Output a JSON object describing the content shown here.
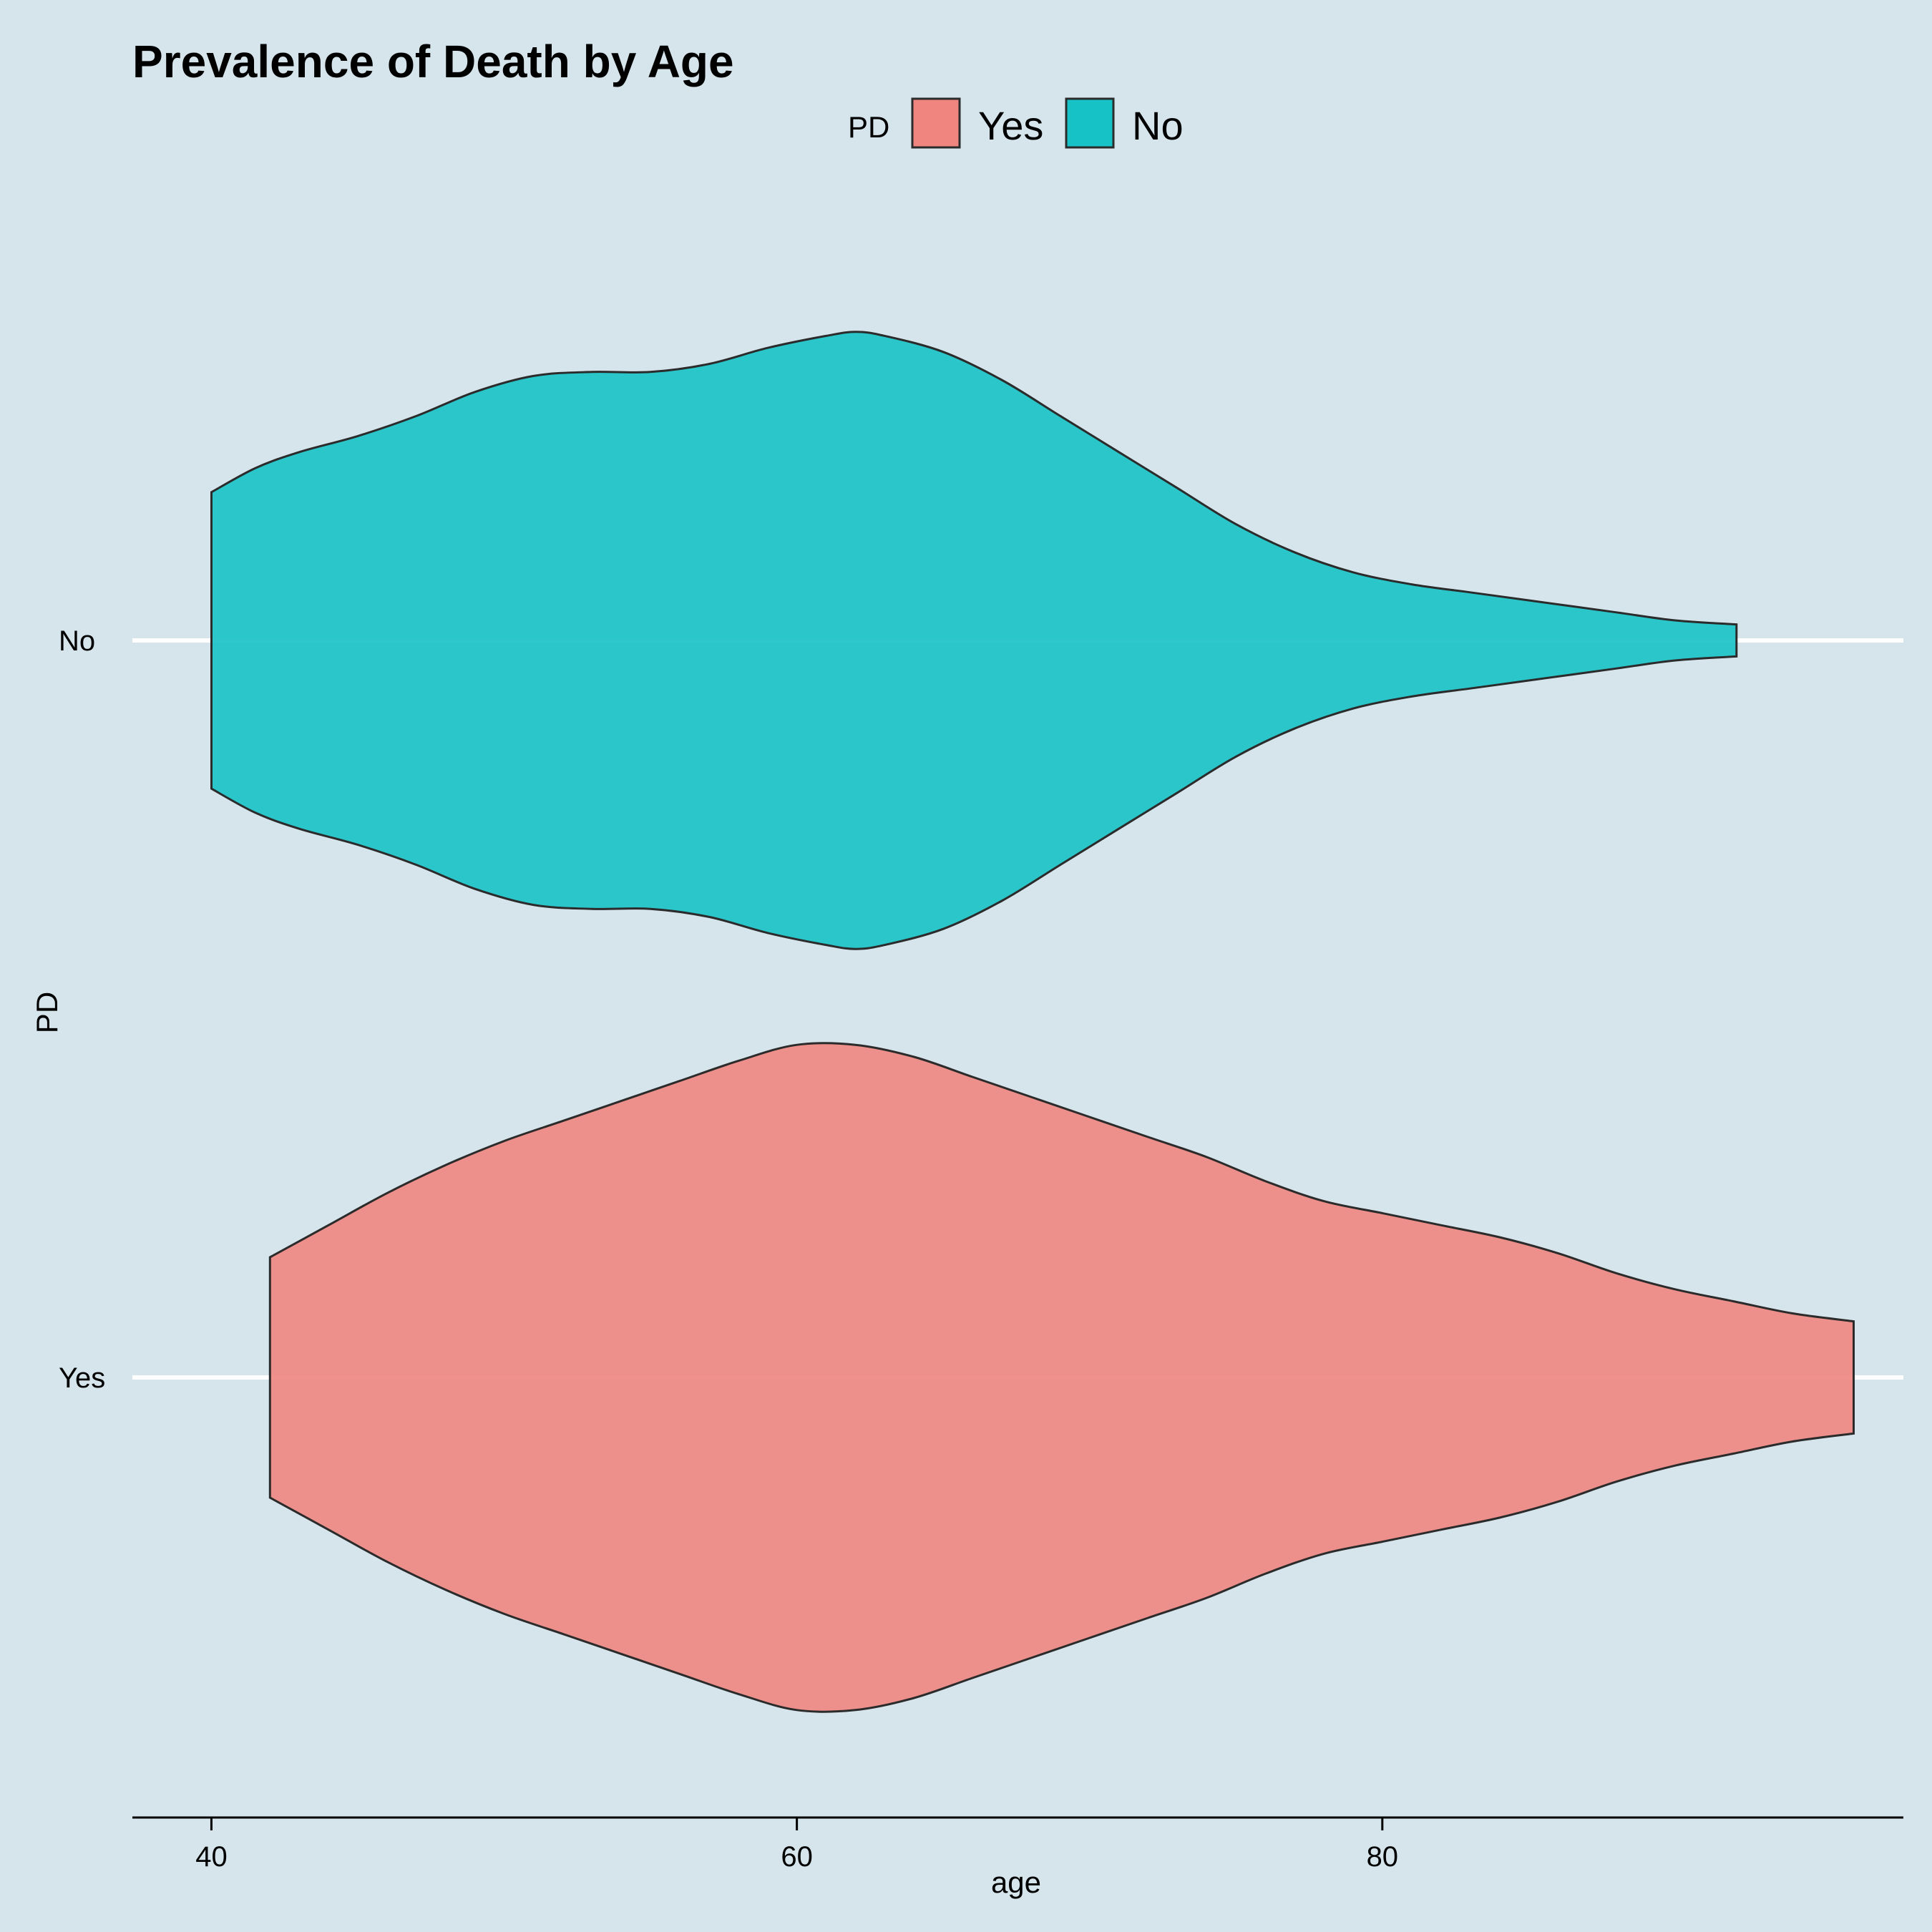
{
  "chart_data": {
    "type": "violin",
    "orientation": "horizontal",
    "title": "Prevalence of Death by Age",
    "xlabel": "age",
    "ylabel": "PD",
    "xlim": [
      37.3,
      97.8
    ],
    "x_ticks": [
      40,
      60,
      80
    ],
    "categories": [
      "Yes",
      "No"
    ],
    "legend": {
      "title": "PD",
      "position": "top",
      "entries": [
        {
          "label": "Yes",
          "color": "#f08580"
        },
        {
          "label": "No",
          "color": "#17c2c7"
        }
      ]
    },
    "grid": {
      "major_y": true,
      "major_x": false
    },
    "series": [
      {
        "name": "No",
        "category": "No",
        "color": "#17c2c7",
        "age_range": [
          40,
          92.1
        ],
        "density_profile": [
          [
            40.0,
            0.37
          ],
          [
            41.5,
            0.43
          ],
          [
            43.0,
            0.47
          ],
          [
            45.0,
            0.51
          ],
          [
            47.0,
            0.56
          ],
          [
            49.0,
            0.62
          ],
          [
            51.0,
            0.66
          ],
          [
            53.0,
            0.67
          ],
          [
            55.0,
            0.67
          ],
          [
            57.0,
            0.69
          ],
          [
            59.0,
            0.73
          ],
          [
            61.0,
            0.76
          ],
          [
            62.0,
            0.77
          ],
          [
            63.0,
            0.76
          ],
          [
            65.0,
            0.72
          ],
          [
            67.0,
            0.65
          ],
          [
            69.0,
            0.56
          ],
          [
            71.0,
            0.47
          ],
          [
            73.0,
            0.38
          ],
          [
            75.0,
            0.29
          ],
          [
            77.0,
            0.22
          ],
          [
            79.0,
            0.17
          ],
          [
            81.0,
            0.14
          ],
          [
            83.0,
            0.12
          ],
          [
            85.0,
            0.1
          ],
          [
            88.0,
            0.07
          ],
          [
            90.0,
            0.05
          ],
          [
            92.1,
            0.04
          ]
        ]
      },
      {
        "name": "Yes",
        "category": "Yes",
        "color": "#f08580",
        "age_range": [
          42,
          96.1
        ],
        "density_profile": [
          [
            42.0,
            0.3
          ],
          [
            44.0,
            0.38
          ],
          [
            46.0,
            0.46
          ],
          [
            48.0,
            0.53
          ],
          [
            50.0,
            0.59
          ],
          [
            52.0,
            0.64
          ],
          [
            54.0,
            0.69
          ],
          [
            56.0,
            0.74
          ],
          [
            58.0,
            0.79
          ],
          [
            60.0,
            0.83
          ],
          [
            62.0,
            0.83
          ],
          [
            64.0,
            0.8
          ],
          [
            66.0,
            0.75
          ],
          [
            68.0,
            0.7
          ],
          [
            70.0,
            0.65
          ],
          [
            72.0,
            0.6
          ],
          [
            74.0,
            0.55
          ],
          [
            76.0,
            0.49
          ],
          [
            78.0,
            0.44
          ],
          [
            80.0,
            0.41
          ],
          [
            82.0,
            0.38
          ],
          [
            84.0,
            0.35
          ],
          [
            86.0,
            0.31
          ],
          [
            88.0,
            0.26
          ],
          [
            90.0,
            0.22
          ],
          [
            92.0,
            0.19
          ],
          [
            94.0,
            0.16
          ],
          [
            96.1,
            0.14
          ]
        ]
      }
    ]
  }
}
